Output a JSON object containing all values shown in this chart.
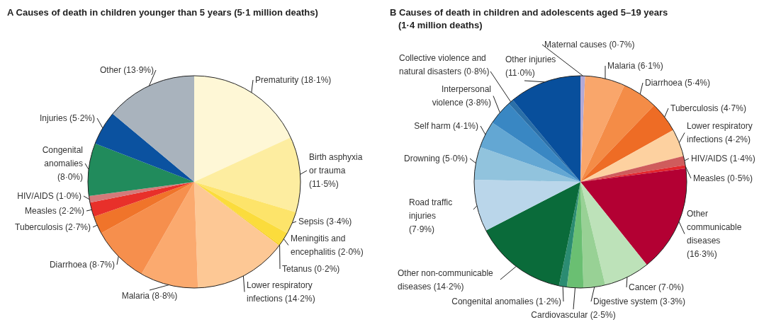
{
  "chart_data": [
    {
      "type": "pie",
      "title": "A  Causes of death in children younger than 5 years (5·1 million deaths)",
      "categories": [
        "Prematurity (18·1%)",
        "Birth asphyxia or trauma (11·5%)",
        "Sepsis (3·4%)",
        "Meningitis and encephalitis (2·0%)",
        "Tetanus (0·2%)",
        "Lower respiratory infections (14·2%)",
        "Malaria (8·8%)",
        "Diarrhoea (8·7%)",
        "Tuberculosis (2·7%)",
        "Measles (2·2%)",
        "HIV/AIDS (1·0%)",
        "Congenital anomalies (8·0%)",
        "Injuries (5·2%)",
        "Other (13·9%)"
      ],
      "values": [
        18.1,
        11.5,
        3.4,
        2.0,
        0.2,
        14.2,
        8.8,
        8.7,
        2.7,
        2.2,
        1.0,
        8.0,
        5.2,
        13.9
      ],
      "colors": [
        "#fef7d6",
        "#fdeda0",
        "#fde46a",
        "#fbdc3c",
        "#f7d11c",
        "#fdc895",
        "#fbaa6f",
        "#f68f4d",
        "#f0742a",
        "#e8302a",
        "#d47a7a",
        "#218b5c",
        "#0b52a0",
        "#a9b3bd"
      ]
    },
    {
      "type": "pie",
      "title": "B  Causes of death in children and adolescents aged 5–19 years (1·4 million deaths)",
      "categories": [
        "Maternal causes (0·7%)",
        "Malaria (6·1%)",
        "Diarrhoea (5·4%)",
        "Tuberculosis (4·7%)",
        "Lower respiratory infections (4·2%)",
        "HIV/AIDS (1·4%)",
        "Measles (0·5%)",
        "Other communicable diseases (16·3%)",
        "Cancer (7·0%)",
        "Digestive system (3·3%)",
        "Cardiovascular (2·5%)",
        "Congenital anomalies (1·2%)",
        "Other non-communicable diseases (14·2%)",
        "Road traffic injuries (7·9%)",
        "Drowning (5·0%)",
        "Self harm (4·1%)",
        "Interpersonal violence (3·8%)",
        "Collective violence and natural disasters (0·8%)",
        "Other injuries (11·0%)"
      ],
      "values": [
        0.7,
        6.1,
        5.4,
        4.7,
        4.2,
        1.4,
        0.5,
        16.3,
        7.0,
        3.3,
        2.5,
        1.2,
        14.2,
        7.9,
        5.0,
        4.1,
        3.8,
        0.8,
        11.0
      ],
      "colors": [
        "#b3a9d6",
        "#f9a66b",
        "#f48c47",
        "#ee6c25",
        "#fdd1a0",
        "#cf5c5c",
        "#e3262c",
        "#b30033",
        "#bde2b9",
        "#98d195",
        "#6abf72",
        "#2b8c72",
        "#0a6b3a",
        "#bad6ea",
        "#91c3dd",
        "#63a7d3",
        "#3987c3",
        "#2a6fa8",
        "#084f9c"
      ]
    }
  ]
}
